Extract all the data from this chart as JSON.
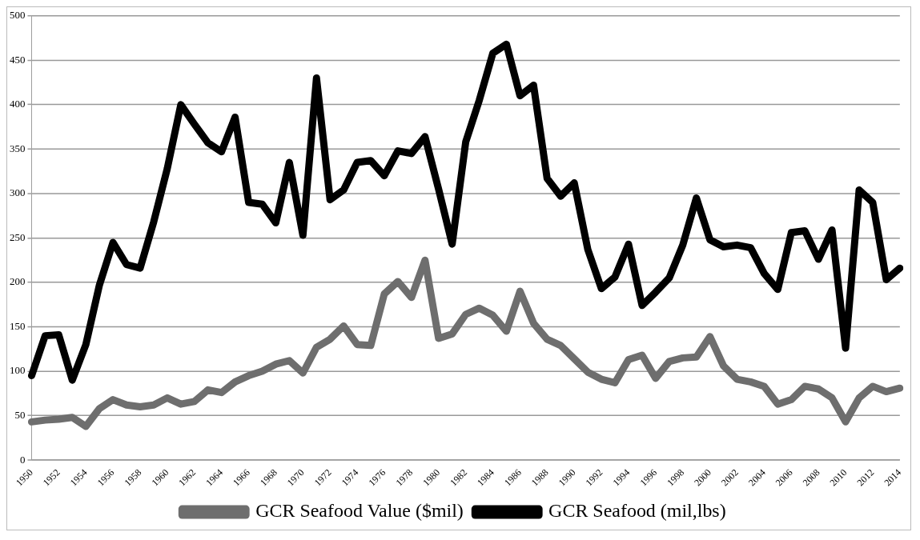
{
  "chart_data": {
    "type": "line",
    "categories": [
      "1950",
      null,
      "1952",
      null,
      "1954",
      null,
      "1956",
      null,
      "1958",
      null,
      "1960",
      null,
      "1962",
      null,
      "1964",
      null,
      "1966",
      null,
      "1968",
      null,
      "1970",
      null,
      "1972",
      null,
      "1974",
      null,
      "1976",
      null,
      "1978",
      null,
      "1980",
      null,
      "1982",
      null,
      "1984",
      null,
      "1986",
      null,
      "1988",
      null,
      "1990",
      null,
      "1992",
      null,
      "1994",
      null,
      "1996",
      null,
      "1998",
      null,
      "2000",
      null,
      "2002",
      null,
      "2004",
      null,
      "2006",
      null,
      "2008",
      null,
      "2010",
      null,
      "2012",
      null,
      "2014"
    ],
    "series": [
      {
        "name": "GCR Seafood Value ($mil)",
        "color": "#6e6e6e",
        "values": [
          43,
          45,
          46,
          48,
          38,
          58,
          68,
          62,
          60,
          62,
          70,
          63,
          66,
          79,
          76,
          88,
          95,
          100,
          108,
          112,
          98,
          127,
          136,
          151,
          130,
          129,
          187,
          201,
          183,
          225,
          137,
          142,
          164,
          171,
          163,
          145,
          190,
          154,
          136,
          129,
          114,
          99,
          91,
          87,
          113,
          118,
          92,
          111,
          115,
          116,
          139,
          106,
          91,
          88,
          83,
          63,
          68,
          83,
          80,
          70,
          43,
          70,
          83,
          77,
          81
        ]
      },
      {
        "name": "GCR Seafood (mil,lbs)",
        "color": "#000000",
        "values": [
          95,
          140,
          141,
          90,
          130,
          197,
          245,
          220,
          216,
          268,
          328,
          400,
          378,
          357,
          347,
          386,
          290,
          288,
          267,
          335,
          253,
          430,
          293,
          304,
          335,
          337,
          320,
          348,
          345,
          364,
          305,
          243,
          358,
          405,
          458,
          468,
          410,
          422,
          317,
          297,
          312,
          237,
          193,
          206,
          243,
          174,
          189,
          205,
          242,
          295,
          248,
          240,
          242,
          239,
          210,
          192,
          256,
          258,
          226,
          259,
          126,
          304,
          290,
          203,
          216
        ]
      }
    ],
    "ylim": [
      0,
      500
    ],
    "yticks": [
      0,
      50,
      100,
      150,
      200,
      250,
      300,
      350,
      400,
      450,
      500
    ],
    "grid": "y",
    "legend": "bottom",
    "marker": "none",
    "line_style": "solid"
  }
}
